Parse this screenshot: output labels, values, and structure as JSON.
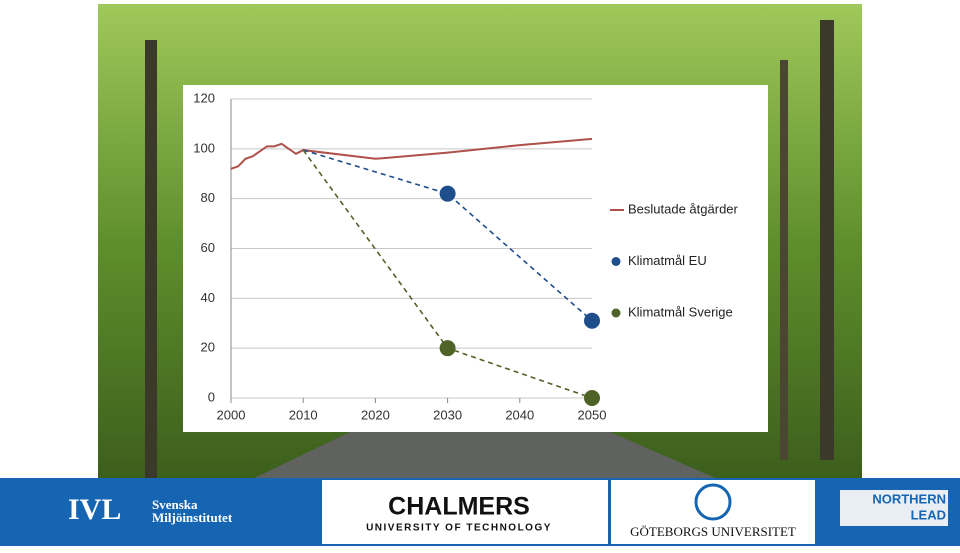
{
  "chart_data": {
    "type": "line",
    "xlim": [
      2000,
      2050
    ],
    "xticks": [
      2000,
      2010,
      2020,
      2030,
      2040,
      2050
    ],
    "ylim": [
      0,
      120
    ],
    "yticks": [
      0,
      20,
      40,
      60,
      80,
      100,
      120
    ],
    "grid": true,
    "legend": "right",
    "series": [
      {
        "name": "Beslutade åtgärder",
        "color": "#b0504b",
        "line_style": "solid",
        "x": [
          2000,
          2001,
          2002,
          2003,
          2004,
          2005,
          2006,
          2007,
          2008,
          2009,
          2010,
          2020,
          2030,
          2040,
          2050
        ],
        "values": [
          92,
          93,
          96,
          97,
          99,
          101,
          101,
          102,
          100,
          98,
          99.5,
          96,
          98.5,
          101.5,
          104
        ],
        "markers": [
          false,
          false,
          false,
          false,
          false,
          false,
          false,
          false,
          false,
          false,
          false,
          false,
          false,
          false,
          false
        ]
      },
      {
        "name": "Klimatmål EU",
        "color": "#1f4e8c",
        "line_style": "dashed",
        "x": [
          2010,
          2030,
          2050
        ],
        "values": [
          99.5,
          82,
          31
        ],
        "markers": [
          false,
          true,
          true
        ]
      },
      {
        "name": "Klimatmål Sverige",
        "color": "#4f6228",
        "line_style": "dashed",
        "x": [
          2010,
          2030,
          2050
        ],
        "values": [
          99.5,
          20,
          0
        ],
        "markers": [
          false,
          true,
          true
        ]
      }
    ]
  },
  "footer": {
    "ivl": {
      "mark": "IVL",
      "line1": "Svenska",
      "line2": "Miljöinstitutet"
    },
    "chalmers": {
      "name": "CHALMERS",
      "sub": "UNIVERSITY OF TECHNOLOGY"
    },
    "gu": {
      "name": "GÖTEBORGS UNIVERSITET"
    },
    "northern": {
      "line1": "NORTHERN",
      "line2": "LEAD"
    }
  }
}
